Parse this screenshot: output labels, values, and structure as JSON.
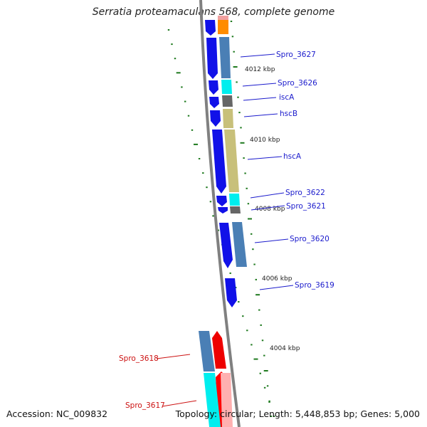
{
  "title": "Serratia proteamaculans 568, complete genome",
  "footer": {
    "accession": "Accession: NC_009832",
    "summary": "Topology: circular; Length: 5,448,853 bp; Genes: 5,000"
  },
  "colors": {
    "backbone": "#7f7f7f",
    "cds_strand": "#1111e8",
    "label_blue": "#1a1acc",
    "label_red": "#cc1111",
    "tick": "#1f7a1f"
  },
  "ruler": [
    {
      "text": "4012 kbp"
    },
    {
      "text": "4010 kbp"
    },
    {
      "text": "4008 kbp"
    },
    {
      "text": "4006 kbp"
    },
    {
      "text": "4004 kbp"
    }
  ],
  "gene_labels": [
    {
      "text": "Spro_3627"
    },
    {
      "text": "Spro_3626"
    },
    {
      "text": "iscA"
    },
    {
      "text": "hscB"
    },
    {
      "text": "hscA"
    },
    {
      "text": "Spro_3622"
    },
    {
      "text": "Spro_3621"
    },
    {
      "text": "Spro_3620"
    },
    {
      "text": "Spro_3619"
    },
    {
      "text": "Spro_3618"
    },
    {
      "text": "Spro_3617"
    }
  ]
}
